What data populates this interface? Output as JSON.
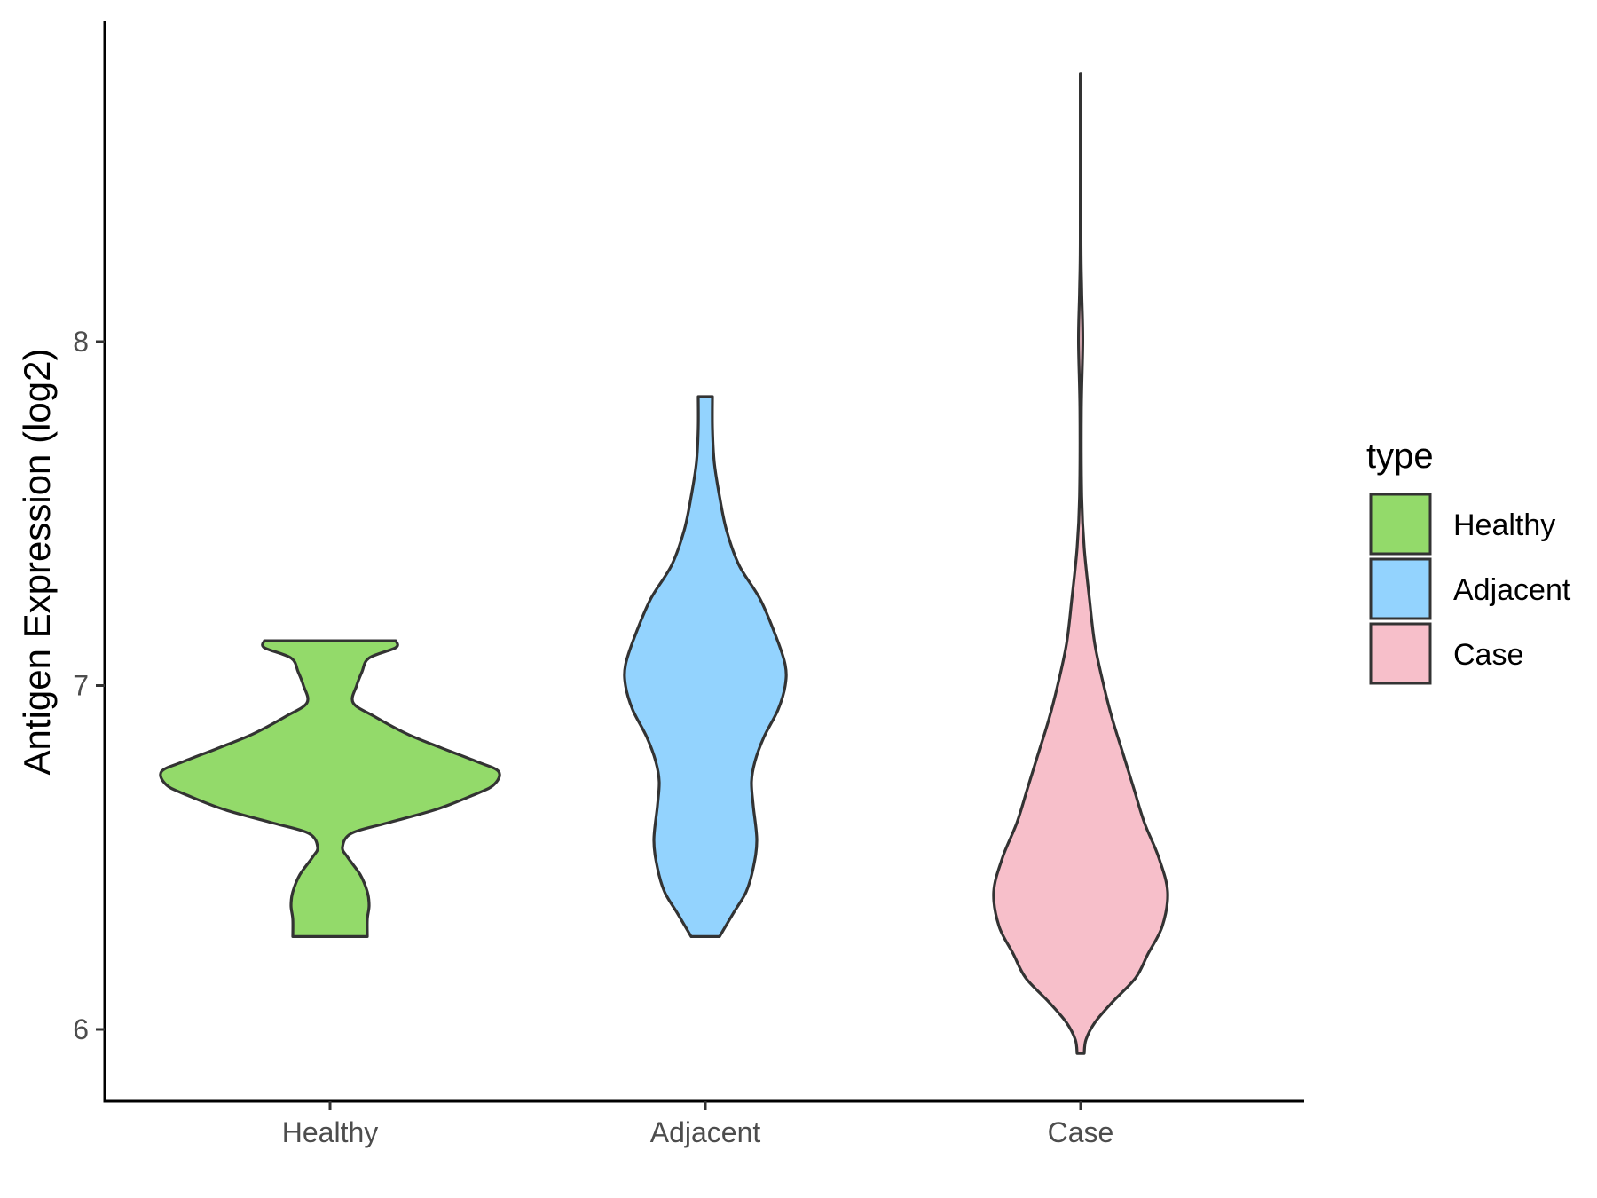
{
  "chart_data": {
    "type": "violin",
    "title": "",
    "xlabel": "",
    "ylabel": "Antigen Expression (log2)",
    "categories": [
      "Healthy",
      "Adjacent",
      "Case"
    ],
    "yticks": [
      "6",
      "7",
      "8"
    ],
    "ylim": [
      5.79,
      8.93
    ],
    "grid": false,
    "legend": {
      "title": "type",
      "placement": "right",
      "entries": [
        {
          "label": "Healthy",
          "color": "#93DA6A"
        },
        {
          "label": "Adjacent",
          "color": "#93D3FE"
        },
        {
          "label": "Case",
          "color": "#F7BFCA"
        }
      ]
    },
    "outline_color": "#333333",
    "series": [
      {
        "category": "Healthy",
        "color": "#93DA6A",
        "range": [
          6.27,
          7.13
        ],
        "density": [
          [
            6.27,
            0.21
          ],
          [
            6.32,
            0.21
          ],
          [
            6.36,
            0.22
          ],
          [
            6.4,
            0.21
          ],
          [
            6.45,
            0.17
          ],
          [
            6.5,
            0.1
          ],
          [
            6.53,
            0.07
          ],
          [
            6.57,
            0.12
          ],
          [
            6.6,
            0.32
          ],
          [
            6.64,
            0.6
          ],
          [
            6.68,
            0.8
          ],
          [
            6.71,
            0.92
          ],
          [
            6.75,
            0.95
          ],
          [
            6.78,
            0.82
          ],
          [
            6.82,
            0.62
          ],
          [
            6.86,
            0.43
          ],
          [
            6.91,
            0.25
          ],
          [
            6.95,
            0.13
          ],
          [
            7.0,
            0.15
          ],
          [
            7.04,
            0.18
          ],
          [
            7.08,
            0.22
          ],
          [
            7.11,
            0.37
          ],
          [
            7.13,
            0.37
          ]
        ]
      },
      {
        "category": "Adjacent",
        "color": "#93D3FE",
        "range": [
          6.27,
          7.84
        ],
        "density": [
          [
            6.27,
            0.08
          ],
          [
            6.34,
            0.16
          ],
          [
            6.4,
            0.23
          ],
          [
            6.47,
            0.27
          ],
          [
            6.55,
            0.29
          ],
          [
            6.65,
            0.27
          ],
          [
            6.72,
            0.26
          ],
          [
            6.78,
            0.28
          ],
          [
            6.85,
            0.33
          ],
          [
            6.93,
            0.41
          ],
          [
            7.0,
            0.45
          ],
          [
            7.06,
            0.45
          ],
          [
            7.14,
            0.4
          ],
          [
            7.25,
            0.31
          ],
          [
            7.35,
            0.19
          ],
          [
            7.45,
            0.12
          ],
          [
            7.55,
            0.08
          ],
          [
            7.65,
            0.05
          ],
          [
            7.75,
            0.04
          ],
          [
            7.84,
            0.04
          ]
        ]
      },
      {
        "category": "Case",
        "color": "#F7BFCA",
        "range": [
          5.93,
          8.78
        ],
        "density": [
          [
            5.93,
            0.02
          ],
          [
            5.97,
            0.03
          ],
          [
            6.02,
            0.08
          ],
          [
            6.08,
            0.18
          ],
          [
            6.15,
            0.31
          ],
          [
            6.22,
            0.38
          ],
          [
            6.3,
            0.46
          ],
          [
            6.4,
            0.49
          ],
          [
            6.5,
            0.44
          ],
          [
            6.6,
            0.36
          ],
          [
            6.7,
            0.3
          ],
          [
            6.8,
            0.24
          ],
          [
            6.9,
            0.18
          ],
          [
            7.0,
            0.13
          ],
          [
            7.12,
            0.08
          ],
          [
            7.25,
            0.05
          ],
          [
            7.4,
            0.02
          ],
          [
            7.55,
            0.006
          ],
          [
            7.8,
            0.004
          ],
          [
            8.0,
            0.012
          ],
          [
            8.15,
            0.006
          ],
          [
            8.3,
            0.002
          ],
          [
            8.78,
            0.002
          ]
        ]
      }
    ]
  }
}
